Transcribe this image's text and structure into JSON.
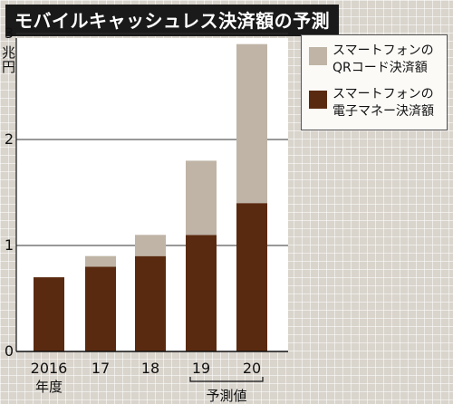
{
  "title": "モバイルキャッシュレス決済額の予測",
  "unit": "兆円",
  "x_unit": "年度",
  "forecast_note": "予測値",
  "chart_data": {
    "type": "bar",
    "stacked": true,
    "categories": [
      "2016",
      "17",
      "18",
      "19",
      "20"
    ],
    "series": [
      {
        "name": "スマートフォンの電子マネー決済額",
        "color": "#5a2a10",
        "values": [
          0.7,
          0.8,
          0.9,
          1.1,
          1.4
        ]
      },
      {
        "name": "スマートフォンのQRコード決済額",
        "color": "#bfb4a6",
        "values": [
          0,
          0.1,
          0.2,
          0.7,
          1.5
        ]
      }
    ],
    "yticks": [
      0,
      1,
      2,
      3
    ],
    "ylim": [
      0,
      3
    ],
    "forecast_categories": [
      "19",
      "20"
    ],
    "grid": true,
    "legend_position": "top-right"
  }
}
